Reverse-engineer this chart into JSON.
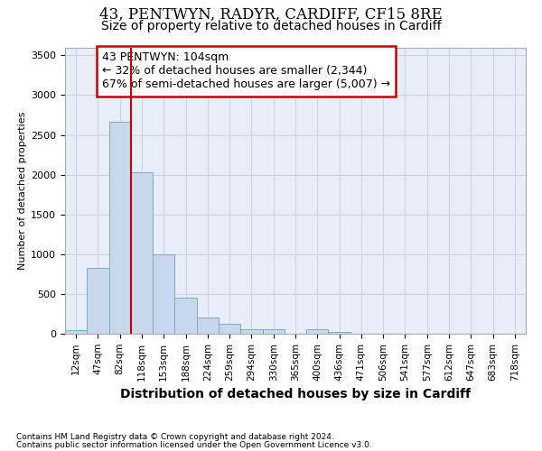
{
  "title": "43, PENTWYN, RADYR, CARDIFF, CF15 8RE",
  "subtitle": "Size of property relative to detached houses in Cardiff",
  "xlabel": "Distribution of detached houses by size in Cardiff",
  "ylabel": "Number of detached properties",
  "footnote1": "Contains HM Land Registry data © Crown copyright and database right 2024.",
  "footnote2": "Contains public sector information licensed under the Open Government Licence v3.0.",
  "annotation_line1": "43 PENTWYN: 104sqm",
  "annotation_line2": "← 32% of detached houses are smaller (2,344)",
  "annotation_line3": "67% of semi-detached houses are larger (5,007) →",
  "bar_color": "#c8d8ec",
  "bar_edge_color": "#7aaac8",
  "vline_color": "#cc0000",
  "vline_x_idx": 2.5,
  "categories": [
    "12sqm",
    "47sqm",
    "82sqm",
    "118sqm",
    "153sqm",
    "188sqm",
    "224sqm",
    "259sqm",
    "294sqm",
    "330sqm",
    "365sqm",
    "400sqm",
    "436sqm",
    "471sqm",
    "506sqm",
    "541sqm",
    "577sqm",
    "612sqm",
    "647sqm",
    "683sqm",
    "718sqm"
  ],
  "values": [
    50,
    830,
    2660,
    2030,
    1000,
    450,
    200,
    130,
    55,
    55,
    2,
    55,
    28,
    5,
    2,
    0,
    0,
    0,
    0,
    0,
    0
  ],
  "ylim": [
    0,
    3600
  ],
  "yticks": [
    0,
    500,
    1000,
    1500,
    2000,
    2500,
    3000,
    3500
  ],
  "grid_color": "#ccd4e4",
  "background_color": "#e8eef8",
  "title_fontsize": 12,
  "subtitle_fontsize": 10,
  "annotation_fontsize": 9,
  "xlabel_fontsize": 10,
  "ylabel_fontsize": 8,
  "tick_fontsize": 7.5,
  "footnote_fontsize": 6.5
}
